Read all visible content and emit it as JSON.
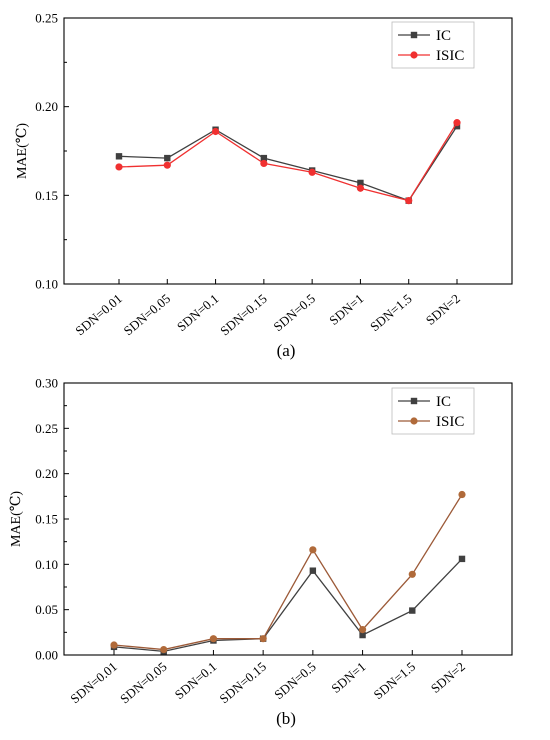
{
  "chart_data": [
    {
      "type": "line",
      "caption": "(a)",
      "ylabel": "MAE(℃)",
      "ylim": [
        0.1,
        0.25
      ],
      "yticks": [
        "0.10",
        "0.15",
        "0.20",
        "0.25"
      ],
      "grid": false,
      "legend_position": "top-right",
      "categories": [
        "SDN=0.01",
        "SDN=0.05",
        "SDN=0.1",
        "SDN=0.15",
        "SDN=0.5",
        "SDN=1",
        "SDN=1.5",
        "SDN=2"
      ],
      "series": [
        {
          "name": "IC",
          "marker": "square",
          "color": "#404040",
          "values": [
            0.172,
            0.171,
            0.187,
            0.171,
            0.164,
            0.157,
            0.147,
            0.189
          ]
        },
        {
          "name": "ISIC",
          "marker": "circle",
          "color": "#f03030",
          "values": [
            0.166,
            0.167,
            0.186,
            0.168,
            0.163,
            0.154,
            0.147,
            0.191
          ]
        }
      ]
    },
    {
      "type": "line",
      "caption": "(b)",
      "ylabel": "MAE(℃)",
      "ylim": [
        0.0,
        0.3
      ],
      "yticks": [
        "0.00",
        "0.05",
        "0.10",
        "0.15",
        "0.20",
        "0.25",
        "0.30"
      ],
      "grid": false,
      "legend_position": "top-right",
      "categories": [
        "SDN=0.01",
        "SDN=0.05",
        "SDN=0.1",
        "SDN=0.15",
        "SDN=0.5",
        "SDN=1",
        "SDN=1.5",
        "SDN=2"
      ],
      "series": [
        {
          "name": "IC",
          "marker": "square",
          "color": "#404040",
          "values": [
            0.009,
            0.004,
            0.016,
            0.018,
            0.093,
            0.022,
            0.049,
            0.106
          ]
        },
        {
          "name": "ISIC",
          "marker": "circle",
          "color": "#9c5a38",
          "marker_color": "#b06a3a",
          "values": [
            0.011,
            0.006,
            0.018,
            0.018,
            0.116,
            0.028,
            0.089,
            0.177
          ]
        }
      ]
    }
  ]
}
